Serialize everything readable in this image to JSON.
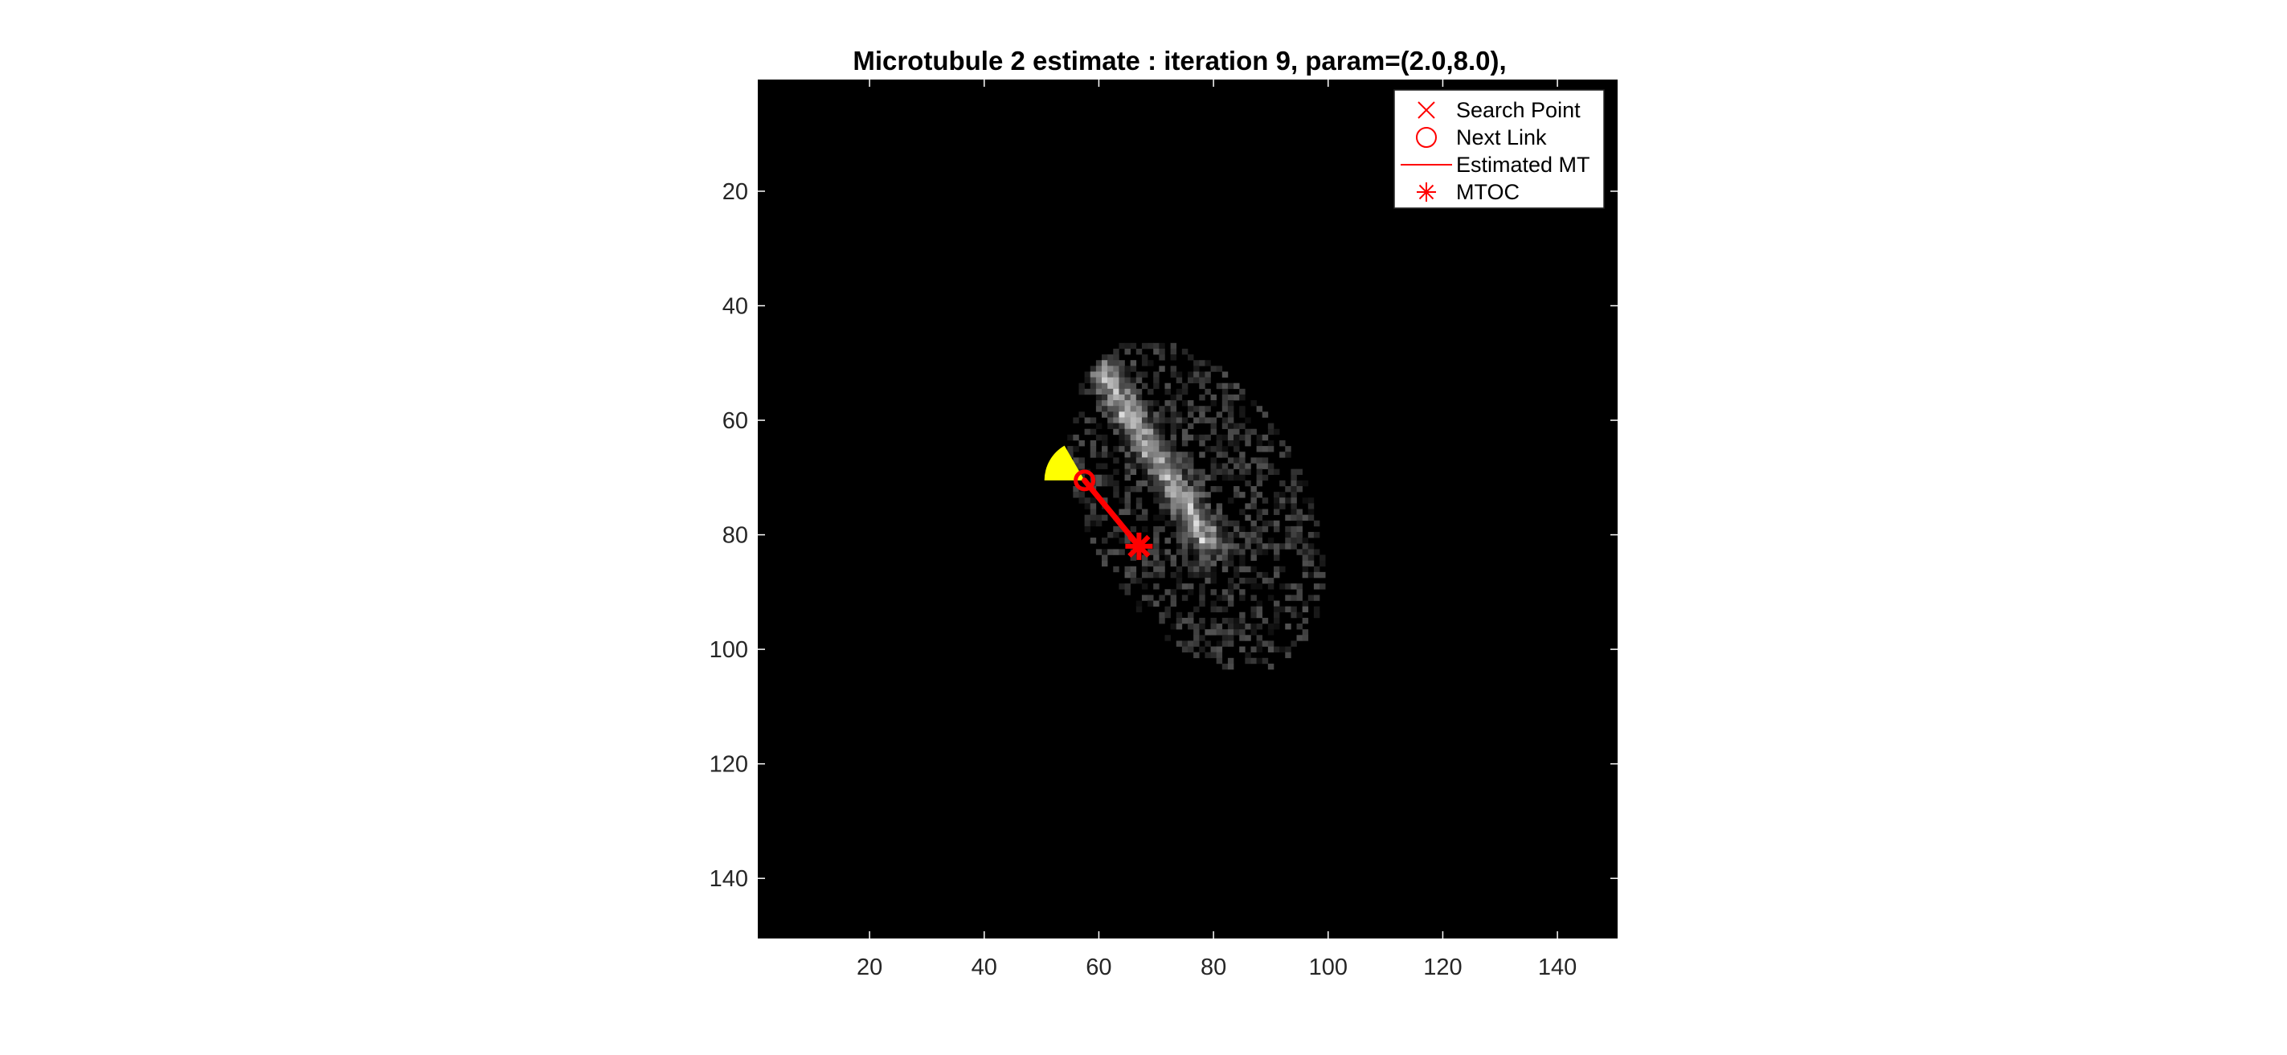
{
  "title": "Microtubule 2 estimate : iteration 9, param=(2.0,8.0),",
  "legend": {
    "location": "top-right",
    "entries": [
      {
        "label": "Search Point",
        "marker": "x-mark-icon"
      },
      {
        "label": "Next Link",
        "marker": "circle-icon"
      },
      {
        "label": "Estimated MT",
        "marker": "line-icon"
      },
      {
        "label": "MTOC",
        "marker": "asterisk-icon"
      }
    ]
  },
  "colors": {
    "background": "#000000",
    "marker": "#ff0000",
    "wedge": "#ffff00",
    "axis": "#262626"
  },
  "chart_data": {
    "type": "heatmap",
    "image": "grayscale microscopy image of an elliptical cell with a bright diagonal microtubule band",
    "xlim": [
      0.5,
      150.5
    ],
    "ylim": [
      0.5,
      150.5
    ],
    "y_direction": "reversed",
    "xticks": [
      20,
      40,
      60,
      80,
      100,
      120,
      140
    ],
    "yticks": [
      20,
      40,
      60,
      80,
      100,
      120,
      140
    ],
    "grid": false,
    "cell": {
      "center": [
        77,
        75
      ],
      "semi_axes": [
        19,
        31
      ],
      "tilt_deg": -28
    },
    "microtubule_band": {
      "from": [
        61,
        52
      ],
      "to": [
        79,
        81
      ]
    },
    "estimated_mt": {
      "x": [
        67,
        57.5
      ],
      "y": [
        82,
        70.5
      ]
    },
    "mtoc": {
      "x": 67,
      "y": 82
    },
    "next_link": {
      "x": 57.5,
      "y": 70.5
    },
    "search_wedge": {
      "center": [
        57.5,
        70.5
      ],
      "radius": 7,
      "angle_from_deg": 180,
      "angle_to_deg": 240
    }
  }
}
